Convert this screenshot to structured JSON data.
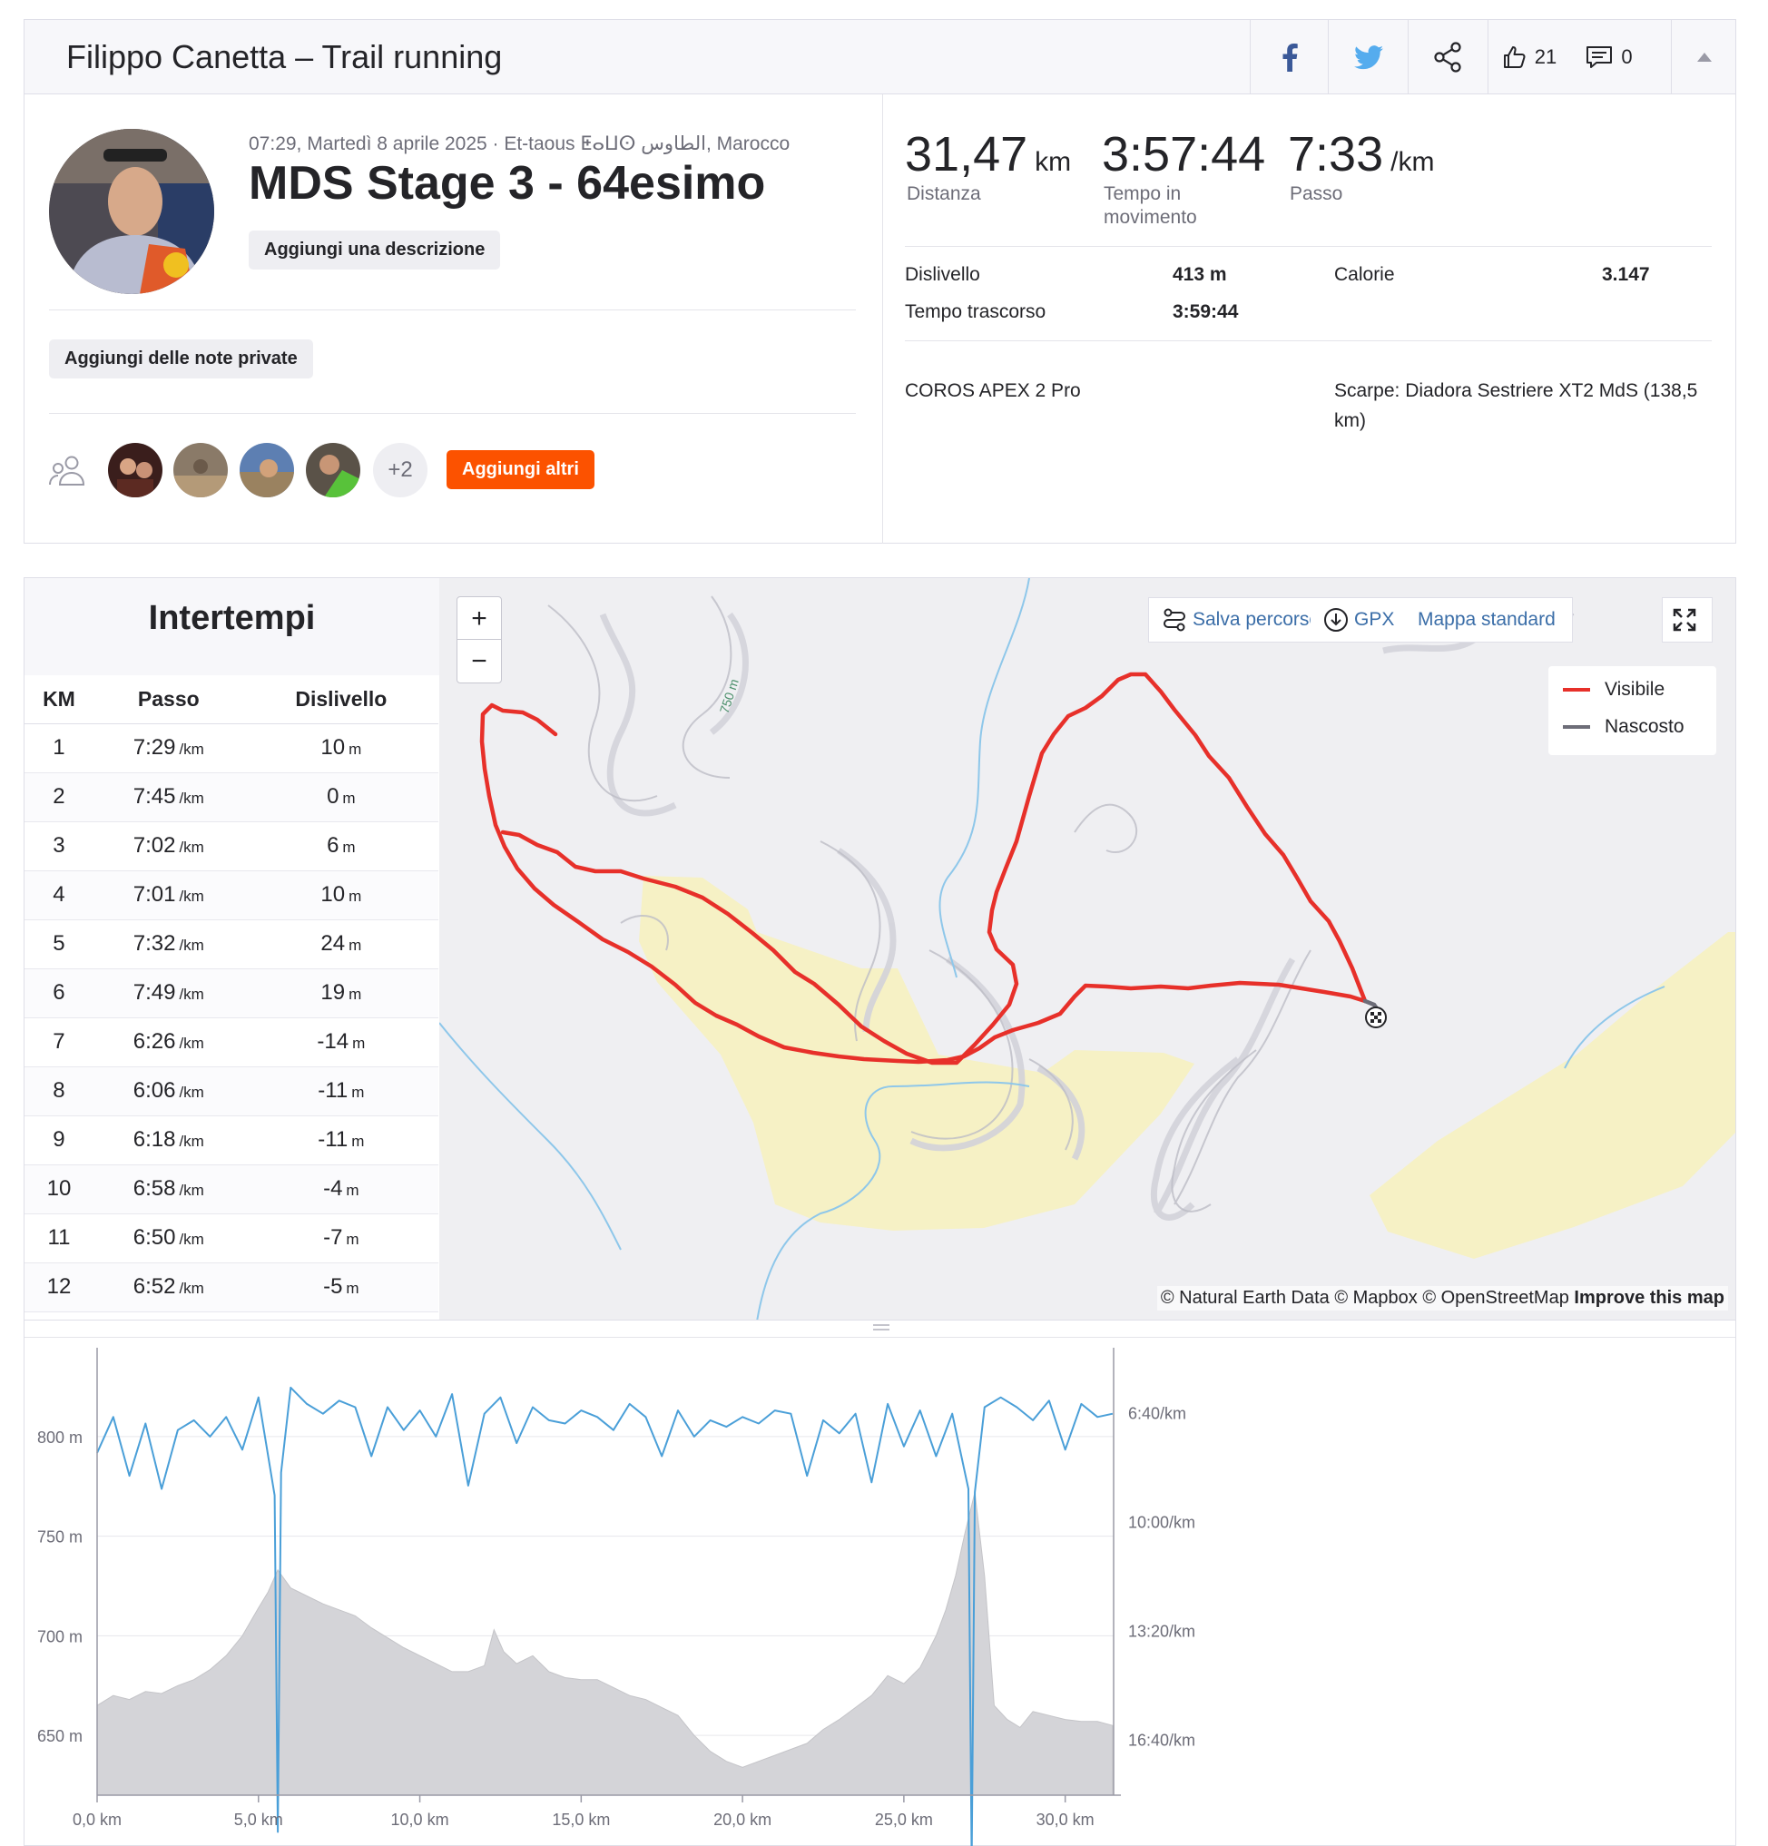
{
  "header": {
    "title": "Filippo Canetta – Trail running",
    "kudos_count": "21",
    "comments_count": "0"
  },
  "activity": {
    "meta": "07:29, Martedì 8 aprile 2025 · Et-taous ⵟⴰⵡⵙ الطاوس, Marocco",
    "title": "MDS Stage 3 - 64esimo",
    "add_description": "Aggiungi una descrizione",
    "add_private_notes": "Aggiungi delle note private",
    "extra_athletes": "+2",
    "add_others": "Aggiungi altri"
  },
  "stats": {
    "distance_value": "31,47",
    "distance_unit": "km",
    "distance_label": "Distanza",
    "moving_time_value": "3:57:44",
    "moving_time_label": "Tempo in movimento",
    "pace_value": "7:33",
    "pace_unit": "/km",
    "pace_label": "Passo",
    "elevation_label": "Dislivello",
    "elevation_value": "413 m",
    "calories_label": "Calorie",
    "calories_value": "3.147",
    "elapsed_label": "Tempo trascorso",
    "elapsed_value": "3:59:44",
    "device": "COROS APEX 2 Pro",
    "shoes": "Scarpe: Diadora Sestriere XT2 MdS (138,5 km)"
  },
  "splits": {
    "title": "Intertempi",
    "headers": [
      "KM",
      "Passo",
      "Dislivello"
    ],
    "pace_unit": "/km",
    "elev_unit": "m",
    "rows": [
      {
        "km": "1",
        "pace": "7:29",
        "elev": "10"
      },
      {
        "km": "2",
        "pace": "7:45",
        "elev": "0"
      },
      {
        "km": "3",
        "pace": "7:02",
        "elev": "6"
      },
      {
        "km": "4",
        "pace": "7:01",
        "elev": "10"
      },
      {
        "km": "5",
        "pace": "7:32",
        "elev": "24"
      },
      {
        "km": "6",
        "pace": "7:49",
        "elev": "19"
      },
      {
        "km": "7",
        "pace": "6:26",
        "elev": "-14"
      },
      {
        "km": "8",
        "pace": "6:06",
        "elev": "-11"
      },
      {
        "km": "9",
        "pace": "6:18",
        "elev": "-11"
      },
      {
        "km": "10",
        "pace": "6:58",
        "elev": "-4"
      },
      {
        "km": "11",
        "pace": "6:50",
        "elev": "-7"
      },
      {
        "km": "12",
        "pace": "6:52",
        "elev": "-5"
      }
    ]
  },
  "map": {
    "zoom_in": "+",
    "zoom_out": "−",
    "save_route": "Salva percorso",
    "gpx": "GPX",
    "map_style": "Mappa standard",
    "legend_visible": "Visibile",
    "legend_hidden": "Nascosto",
    "contour_label": "750 m",
    "attribution": "© Natural Earth Data © Mapbox © OpenStreetMap",
    "improve": "Improve this map",
    "route_color": "#e7302a",
    "hidden_color": "#6d6d78"
  },
  "chart_data": {
    "type": "area",
    "x_label_unit": "km",
    "x_ticks": [
      "0,0 km",
      "5,0 km",
      "10,0 km",
      "15,0 km",
      "20,0 km",
      "25,0 km",
      "30,0 km"
    ],
    "x_tick_values": [
      0,
      5,
      10,
      15,
      20,
      25,
      30
    ],
    "xlim": [
      0,
      31.5
    ],
    "y_left_ticks": [
      "800 m",
      "750 m",
      "700 m",
      "650 m"
    ],
    "y_left_values": [
      800,
      750,
      700,
      650
    ],
    "ylim_left": [
      620,
      840
    ],
    "y_right_ticks": [
      "6:40/km",
      "10:00/km",
      "13:20/km",
      "16:40/km"
    ],
    "grid": true,
    "series": [
      {
        "kind": "elevation-area",
        "color": "#c8c8cc",
        "x": [
          0,
          0.5,
          1,
          1.5,
          2,
          2.5,
          3,
          3.5,
          4,
          4.5,
          5,
          5.3,
          5.6,
          6,
          6.5,
          7,
          7.5,
          8,
          8.5,
          9,
          9.5,
          10,
          10.5,
          11,
          11.5,
          12,
          12.3,
          12.6,
          13,
          13.5,
          14,
          14.5,
          15,
          15.5,
          16,
          16.5,
          17,
          17.5,
          18,
          18.5,
          19,
          19.5,
          20,
          20.5,
          21,
          21.5,
          22,
          22.5,
          23,
          23.5,
          24,
          24.5,
          25,
          25.5,
          26,
          26.3,
          26.6,
          26.9,
          27.2,
          27.5,
          27.8,
          28.2,
          28.6,
          29,
          29.5,
          30,
          30.5,
          31,
          31.47
        ],
        "values": [
          665,
          670,
          668,
          672,
          671,
          675,
          678,
          683,
          690,
          700,
          714,
          722,
          733,
          724,
          720,
          716,
          713,
          710,
          704,
          699,
          694,
          690,
          686,
          682,
          682,
          685,
          703,
          692,
          686,
          690,
          682,
          679,
          678,
          678,
          674,
          670,
          668,
          664,
          660,
          650,
          642,
          637,
          634,
          637,
          640,
          643,
          646,
          653,
          658,
          664,
          670,
          680,
          676,
          684,
          700,
          713,
          730,
          752,
          772,
          730,
          665,
          658,
          654,
          662,
          660,
          658,
          657,
          657,
          655
        ]
      },
      {
        "kind": "pace-line",
        "color": "#4a9fd8",
        "x": [
          0,
          0.5,
          1,
          1.5,
          2,
          2.5,
          3,
          3.5,
          4,
          4.5,
          5,
          5.5,
          5.6,
          5.7,
          6,
          6.5,
          7,
          7.5,
          8,
          8.5,
          9,
          9.5,
          10,
          10.5,
          11,
          11.5,
          12,
          12.5,
          13,
          13.5,
          14,
          14.5,
          15,
          15.5,
          16,
          16.5,
          17,
          17.5,
          18,
          18.5,
          19,
          19.5,
          20,
          20.5,
          21,
          21.5,
          22,
          22.5,
          23,
          23.5,
          24,
          24.5,
          25,
          25.5,
          26,
          26.5,
          27,
          27.1,
          27.2,
          27.5,
          28,
          28.5,
          29,
          29.5,
          30,
          30.5,
          31,
          31.47
        ],
        "pace_min_per_km": [
          7.9,
          6.8,
          8.6,
          7.0,
          9.0,
          7.2,
          6.9,
          7.4,
          6.8,
          7.8,
          6.2,
          9.2,
          19.5,
          8.5,
          5.9,
          6.4,
          6.7,
          6.3,
          6.5,
          8.0,
          6.5,
          7.2,
          6.6,
          7.4,
          6.1,
          8.9,
          6.7,
          6.2,
          7.6,
          6.5,
          6.9,
          7.0,
          6.6,
          6.8,
          7.2,
          6.4,
          6.8,
          8.0,
          6.6,
          7.4,
          6.9,
          7.1,
          6.8,
          7.0,
          6.6,
          6.7,
          8.6,
          6.9,
          7.3,
          6.7,
          8.8,
          6.4,
          7.7,
          6.6,
          8.0,
          6.7,
          9.0,
          20.4,
          9.1,
          6.5,
          6.2,
          6.5,
          6.9,
          6.3,
          7.8,
          6.4,
          6.8,
          6.7
        ]
      }
    ]
  }
}
